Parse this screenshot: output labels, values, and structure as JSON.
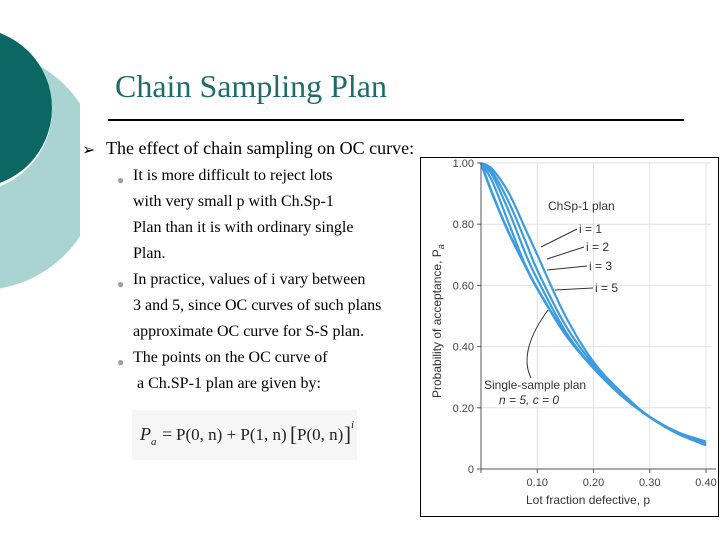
{
  "slide": {
    "title": "Chain Sampling Plan",
    "main_point": "The effect of chain sampling on OC curve:",
    "bullets": [
      [
        "It is more difficult to reject lots",
        "with very small p with Ch.Sp-1",
        "Plan than it is with ordinary single",
        "Plan."
      ],
      [
        "In practice, values of i vary between",
        "3 and 5, since OC curves of such plans",
        "approximate OC curve for S-S plan."
      ],
      [
        "The points on the OC curve of",
        "a Ch.SP-1 plan are given by:"
      ]
    ]
  },
  "formula": {
    "lhs": "P",
    "lhs_sub": "a",
    "eq": "=",
    "t1": "P(0, n) + P(1, n)",
    "bracket_open": "[",
    "t2": "P(0, n)",
    "bracket_close": "]",
    "exp": "i"
  },
  "chart_data": {
    "type": "line",
    "xlabel": "Lot fraction defective, p",
    "ylabel": "Probability of acceptance, P",
    "ylabel_sub": "a",
    "xlim": [
      0,
      0.4
    ],
    "ylim": [
      0,
      1.0
    ],
    "x_ticks": [
      "0",
      "0.10",
      "0.20",
      "0.30",
      "0.40"
    ],
    "y_ticks": [
      "0",
      "0.20",
      "0.40",
      "0.60",
      "0.80",
      "1.00"
    ],
    "line_color": "#3d9be0",
    "annotations": [
      "ChSp-1 plan",
      "i = 1",
      "i = 2",
      "i = 3",
      "i = 5",
      "Single-sample plan",
      "n = 5, c = 0"
    ],
    "series": [
      {
        "name": "i = 1",
        "x": [
          0,
          0.02,
          0.05,
          0.08,
          0.1,
          0.15,
          0.2,
          0.25,
          0.3,
          0.35,
          0.4
        ],
        "y": [
          1.0,
          0.98,
          0.9,
          0.78,
          0.7,
          0.5,
          0.35,
          0.25,
          0.17,
          0.12,
          0.09
        ]
      },
      {
        "name": "i = 2",
        "x": [
          0,
          0.02,
          0.05,
          0.08,
          0.1,
          0.15,
          0.2,
          0.25,
          0.3,
          0.35,
          0.4
        ],
        "y": [
          1.0,
          0.97,
          0.87,
          0.74,
          0.65,
          0.47,
          0.34,
          0.24,
          0.17,
          0.12,
          0.085
        ]
      },
      {
        "name": "i = 3",
        "x": [
          0,
          0.02,
          0.05,
          0.08,
          0.1,
          0.15,
          0.2,
          0.25,
          0.3,
          0.35,
          0.4
        ],
        "y": [
          1.0,
          0.96,
          0.84,
          0.7,
          0.62,
          0.45,
          0.33,
          0.24,
          0.17,
          0.115,
          0.08
        ]
      },
      {
        "name": "i = 5",
        "x": [
          0,
          0.02,
          0.05,
          0.08,
          0.1,
          0.15,
          0.2,
          0.25,
          0.3,
          0.35,
          0.4
        ],
        "y": [
          1.0,
          0.94,
          0.8,
          0.66,
          0.59,
          0.44,
          0.33,
          0.24,
          0.17,
          0.115,
          0.078
        ]
      },
      {
        "name": "Single-sample plan",
        "x": [
          0,
          0.02,
          0.05,
          0.08,
          0.1,
          0.15,
          0.2,
          0.25,
          0.3,
          0.35,
          0.4
        ],
        "y": [
          1.0,
          0.9,
          0.77,
          0.66,
          0.59,
          0.44,
          0.33,
          0.24,
          0.17,
          0.116,
          0.078
        ]
      }
    ]
  }
}
